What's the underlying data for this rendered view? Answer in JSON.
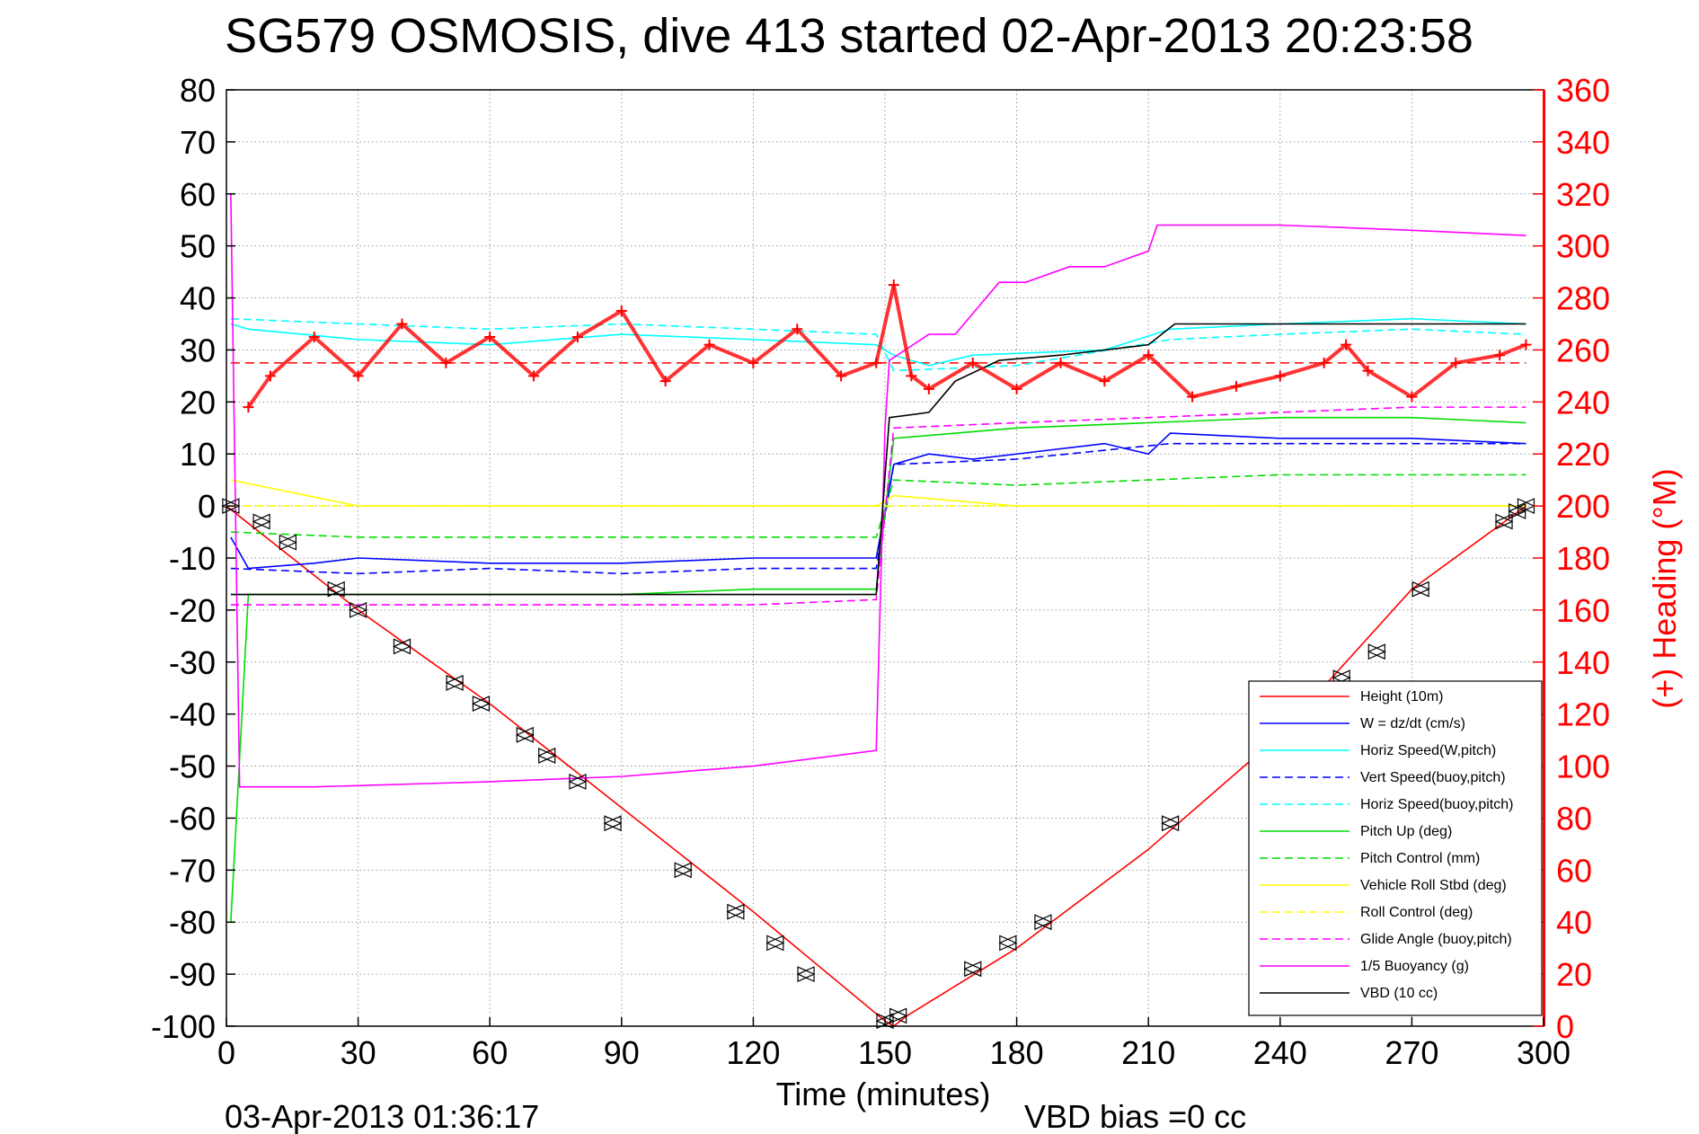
{
  "chart_data": {
    "type": "line",
    "title": "SG579 OSMOSIS, dive 413 started 02-Apr-2013 20:23:58",
    "xlabel": "Time (minutes)",
    "ylabel": "",
    "y2label": "(+) Heading (°M)",
    "xlim": [
      0,
      300
    ],
    "ylim": [
      -100,
      80
    ],
    "y2lim": [
      0,
      360
    ],
    "x_ticks": [
      0,
      30,
      60,
      90,
      120,
      150,
      180,
      210,
      240,
      270,
      300
    ],
    "y_ticks": [
      80,
      70,
      60,
      50,
      40,
      30,
      20,
      10,
      0,
      -10,
      -20,
      -30,
      -40,
      -50,
      -60,
      -70,
      -80,
      -90,
      -100
    ],
    "y2_ticks": [
      360,
      340,
      320,
      300,
      280,
      260,
      240,
      220,
      200,
      180,
      160,
      140,
      120,
      100,
      80,
      60,
      40,
      20,
      0
    ],
    "grid": true,
    "legend_position": "bottom-right",
    "footer_left": "03-Apr-2013 01:36:17",
    "footer_right": "VBD bias =0 cc",
    "series": [
      {
        "name": "Height (10m)",
        "color": "#ff0000",
        "style": "solid",
        "x": [
          0,
          30,
          60,
          90,
          120,
          150,
          152,
          155,
          180,
          210,
          240,
          270,
          296
        ],
        "y": [
          0,
          -20,
          -38,
          -58,
          -78,
          -99,
          -100,
          -98,
          -85,
          -66,
          -44,
          -16,
          0
        ]
      },
      {
        "name": "W = dz/dt (cm/s)",
        "color": "#0000ff",
        "style": "solid",
        "x": [
          1,
          5,
          20,
          30,
          60,
          90,
          120,
          148,
          152,
          160,
          170,
          200,
          210,
          215,
          240,
          270,
          296
        ],
        "y": [
          -6,
          -12,
          -11,
          -10,
          -11,
          -11,
          -10,
          -10,
          8,
          10,
          9,
          12,
          10,
          14,
          13,
          13,
          12
        ]
      },
      {
        "name": "Horiz Speed(W,pitch)",
        "color": "#00ffff",
        "style": "solid",
        "x": [
          1,
          5,
          30,
          60,
          90,
          120,
          148,
          152,
          160,
          170,
          200,
          215,
          240,
          270,
          296
        ],
        "y": [
          35,
          34,
          32,
          31,
          33,
          32,
          31,
          29,
          27,
          29,
          30,
          34,
          35,
          36,
          35
        ]
      },
      {
        "name": "Vert Speed(buoy,pitch)",
        "color": "#0000ff",
        "style": "dashed",
        "x": [
          1,
          30,
          60,
          90,
          120,
          148,
          152,
          180,
          215,
          240,
          270,
          296
        ],
        "y": [
          -12,
          -13,
          -12,
          -13,
          -12,
          -12,
          8,
          9,
          12,
          12,
          12,
          12
        ]
      },
      {
        "name": "Horiz Speed(buoy,pitch)",
        "color": "#00ffff",
        "style": "dashed",
        "x": [
          1,
          30,
          60,
          90,
          120,
          148,
          152,
          180,
          215,
          240,
          270,
          296
        ],
        "y": [
          36,
          35,
          34,
          35,
          34,
          33,
          26,
          27,
          32,
          33,
          34,
          33
        ]
      },
      {
        "name": "Pitch Up (deg)",
        "color": "#00dd00",
        "style": "solid",
        "x": [
          1,
          5,
          30,
          60,
          90,
          120,
          148,
          152,
          180,
          210,
          240,
          270,
          296
        ],
        "y": [
          -80,
          -17,
          -17,
          -17,
          -17,
          -16,
          -16,
          13,
          15,
          16,
          17,
          17,
          16
        ]
      },
      {
        "name": "Pitch Control (mm)",
        "color": "#00dd00",
        "style": "dashed",
        "x": [
          1,
          30,
          60,
          90,
          120,
          148,
          152,
          180,
          210,
          240,
          270,
          296
        ],
        "y": [
          -5,
          -6,
          -6,
          -6,
          -6,
          -6,
          5,
          4,
          5,
          6,
          6,
          6
        ]
      },
      {
        "name": "Vehicle Roll Stbd (deg)",
        "color": "#ffff00",
        "style": "solid",
        "x": [
          1,
          30,
          60,
          90,
          120,
          148,
          152,
          180,
          210,
          240,
          270,
          296
        ],
        "y": [
          5,
          0,
          0,
          0,
          0,
          0,
          2,
          0,
          0,
          0,
          0,
          0
        ]
      },
      {
        "name": "Roll Control (deg)",
        "color": "#ffff00",
        "style": "dashed",
        "x": [
          1,
          30,
          60,
          90,
          120,
          148,
          152,
          180,
          210,
          240,
          270,
          296
        ],
        "y": [
          0,
          0,
          0,
          0,
          0,
          0,
          0,
          0,
          0,
          0,
          0,
          0
        ]
      },
      {
        "name": "Glide Angle (buoy,pitch)",
        "color": "#ff00ff",
        "style": "dashed",
        "x": [
          1,
          30,
          60,
          90,
          120,
          148,
          152,
          180,
          210,
          240,
          270,
          296
        ],
        "y": [
          -19,
          -19,
          -19,
          -19,
          -19,
          -18,
          15,
          16,
          17,
          18,
          19,
          19
        ]
      },
      {
        "name": "1/5 Buoyancy (g)",
        "color": "#ff00ff",
        "style": "solid",
        "x": [
          1,
          3,
          20,
          60,
          90,
          120,
          148,
          150,
          151,
          160,
          166,
          176,
          182,
          192,
          200,
          210,
          212,
          240,
          270,
          296
        ],
        "y": [
          60,
          -54,
          -54,
          -53,
          -52,
          -50,
          -47,
          15,
          28,
          33,
          33,
          43,
          43,
          46,
          46,
          49,
          54,
          54,
          53,
          52
        ]
      },
      {
        "name": "VBD (10 cc)",
        "color": "#000000",
        "style": "solid",
        "x": [
          1,
          3,
          148,
          151,
          160,
          166,
          176,
          190,
          210,
          216,
          240,
          270,
          296
        ],
        "y": [
          -17,
          -17,
          -17,
          17,
          18,
          24,
          28,
          29,
          31,
          35,
          35,
          35,
          35
        ]
      },
      {
        "name": "Heading",
        "color": "#ff0000",
        "style": "marker-plus",
        "axis": "right",
        "x": [
          5,
          10,
          20,
          30,
          40,
          50,
          60,
          70,
          80,
          90,
          100,
          110,
          120,
          130,
          140,
          148,
          152,
          156,
          160,
          170,
          180,
          190,
          200,
          210,
          220,
          230,
          240,
          250,
          255,
          260,
          270,
          280,
          290,
          296
        ],
        "y": [
          238,
          250,
          265,
          250,
          270,
          255,
          265,
          250,
          265,
          275,
          248,
          262,
          255,
          268,
          250,
          255,
          285,
          250,
          245,
          255,
          245,
          255,
          248,
          258,
          242,
          246,
          250,
          255,
          262,
          252,
          242,
          255,
          258,
          262
        ]
      }
    ],
    "reference_lines": [
      {
        "axis": "right",
        "y": 255,
        "color": "#ff0000",
        "style": "dashed"
      }
    ],
    "markers": {
      "name": "sample points",
      "x": [
        1,
        8,
        14,
        25,
        30,
        40,
        52,
        58,
        68,
        73,
        80,
        88,
        104,
        116,
        125,
        132,
        150,
        153,
        170,
        178,
        186,
        215,
        254,
        262,
        272,
        291,
        294,
        296
      ],
      "y": [
        0,
        -3,
        -7,
        -16,
        -20,
        -27,
        -34,
        -38,
        -44,
        -48,
        -53,
        -61,
        -70,
        -78,
        -84,
        -90,
        -99,
        -98,
        -89,
        -84,
        -80,
        -61,
        -33,
        -28,
        -16,
        -3,
        -1,
        0
      ]
    }
  }
}
